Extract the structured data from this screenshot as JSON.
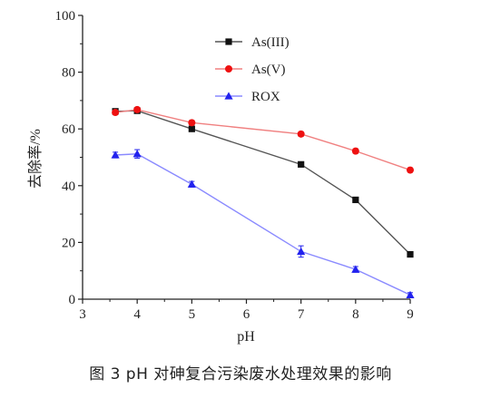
{
  "chart_data": {
    "type": "line",
    "title": "",
    "xlabel": "pH",
    "ylabel": "去除率/%",
    "xlim": [
      3,
      9
    ],
    "ylim": [
      0,
      100
    ],
    "xticks": [
      "3",
      "4",
      "5",
      "6",
      "7",
      "8",
      "9"
    ],
    "yticks": [
      "0",
      "20",
      "40",
      "60",
      "80",
      "100"
    ],
    "legend_position": "top-center",
    "grid": false,
    "series": [
      {
        "name": "As(III)",
        "color": "#555555",
        "marker_color": "#111111",
        "marker": "square",
        "x": [
          3.6,
          4,
          5,
          7,
          8,
          9
        ],
        "y": [
          66.2,
          66.4,
          60.0,
          47.5,
          35.0,
          15.8
        ],
        "error": [
          0.8,
          0.8,
          0.8,
          0.8,
          0.8,
          0.8
        ]
      },
      {
        "name": "As(V)",
        "color": "#f08080",
        "marker_color": "#ee1111",
        "marker": "circle",
        "x": [
          3.6,
          4,
          5,
          7,
          8,
          9
        ],
        "y": [
          65.8,
          66.8,
          62.2,
          58.2,
          52.2,
          45.5
        ],
        "error": [
          0.8,
          0.8,
          0.8,
          0.8,
          0.8,
          0.8
        ]
      },
      {
        "name": "ROX",
        "color": "#8a8aff",
        "marker_color": "#2222ee",
        "marker": "triangle",
        "x": [
          3.6,
          4,
          5,
          7,
          8,
          9
        ],
        "y": [
          50.8,
          51.2,
          40.5,
          16.8,
          10.5,
          1.5
        ],
        "error": [
          1.0,
          1.5,
          1.0,
          2.0,
          1.0,
          0.8
        ]
      }
    ]
  },
  "caption": {
    "text": "图 3    pH 对砷复合污染废水处理效果的影响"
  }
}
